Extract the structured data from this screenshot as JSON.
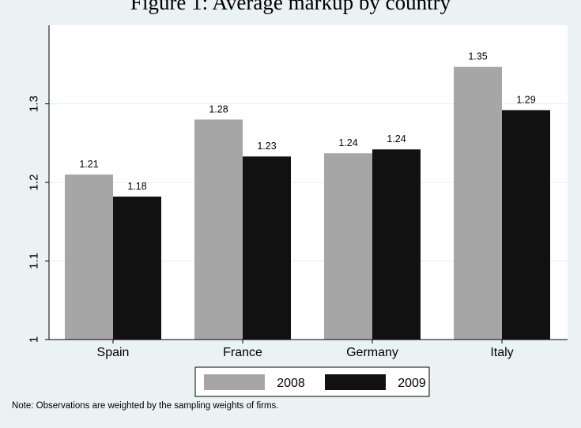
{
  "figure": {
    "title": "Figure 1: Average markup by country",
    "note": "Note: Observations are weighted by the sampling weights of firms."
  },
  "colors": {
    "background": "#eaf2f3",
    "plot_background": "#ffffff",
    "grid": "#e6ecec",
    "series_2008": "#a6a6a6",
    "series_2009": "#111111"
  },
  "chart_data": {
    "type": "bar",
    "title": "Figure 1: Average markup by country",
    "categories": [
      "Spain",
      "France",
      "Germany",
      "Italy"
    ],
    "series": [
      {
        "name": "2008",
        "values": [
          1.21,
          1.28,
          1.237,
          1.347
        ],
        "labels": [
          "1.21",
          "1.28",
          "1.24",
          "1.35"
        ]
      },
      {
        "name": "2009",
        "values": [
          1.182,
          1.233,
          1.242,
          1.292
        ],
        "labels": [
          "1.18",
          "1.23",
          "1.24",
          "1.29"
        ]
      }
    ],
    "yticks": [
      1,
      1.1,
      1.2,
      1.3
    ],
    "ytick_labels": [
      "1",
      "1.1",
      "1.2",
      "1.3"
    ],
    "ylim": [
      1,
      1.4
    ],
    "xlabel": "",
    "ylabel": "",
    "grid": true,
    "legend_position": "bottom"
  }
}
